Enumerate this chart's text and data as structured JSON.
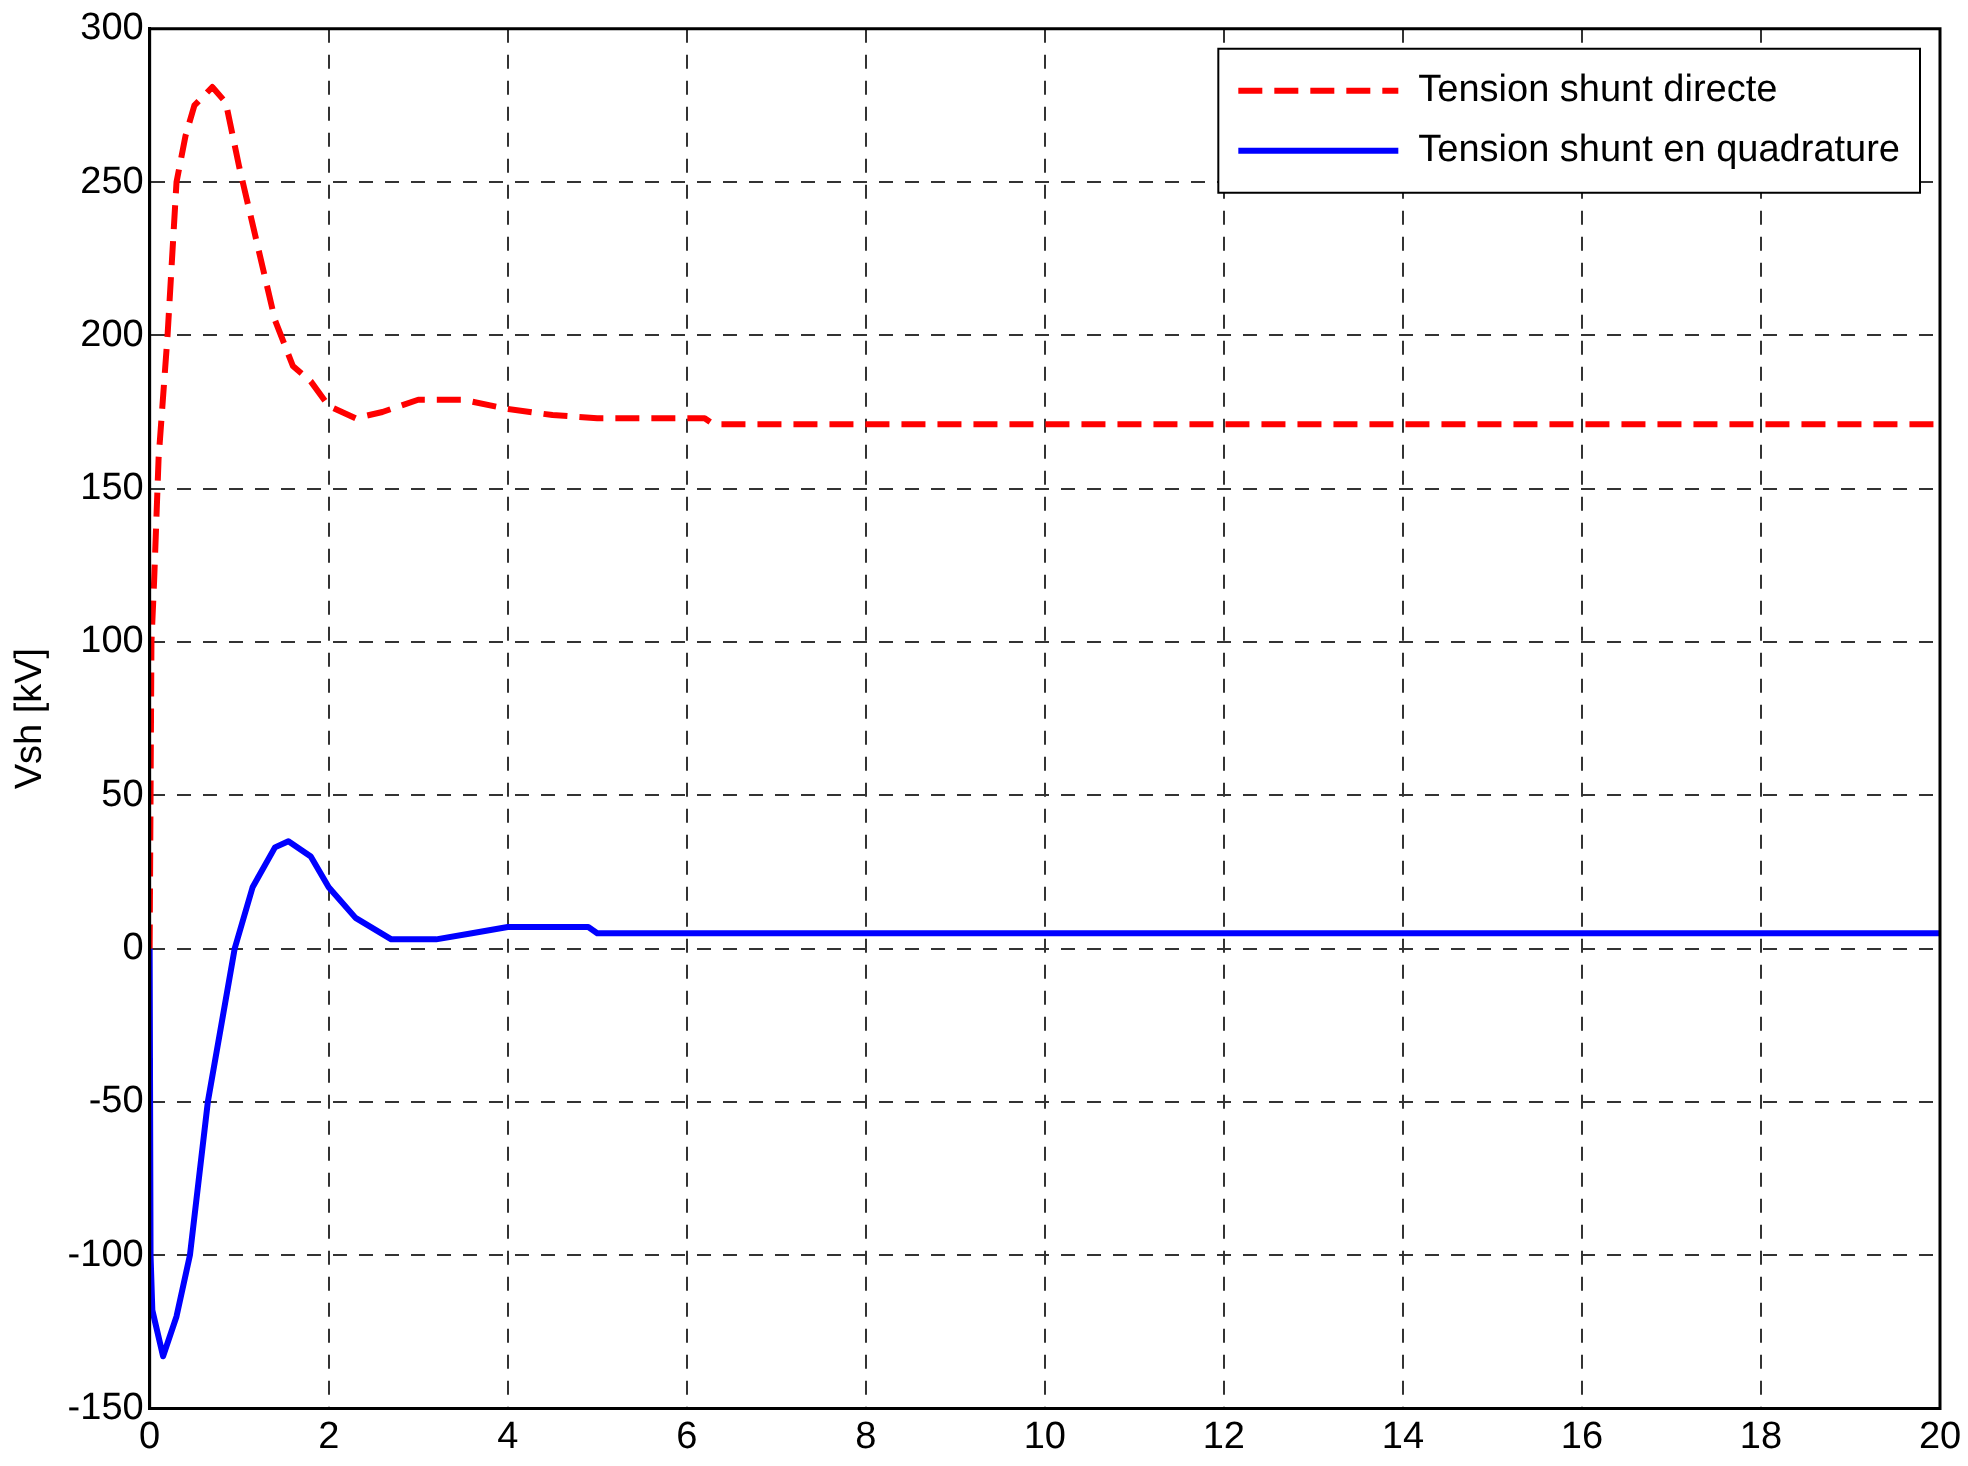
{
  "chart_data": {
    "type": "line",
    "ylabel": "Vsh [kV]",
    "xlim": [
      0,
      20
    ],
    "xticks": [
      0,
      2,
      4,
      6,
      8,
      10,
      12,
      14,
      16,
      18,
      20
    ],
    "ylim": [
      -150,
      300
    ],
    "yticks": [
      -150,
      -100,
      -50,
      0,
      50,
      100,
      150,
      200,
      250,
      300
    ],
    "grid": true,
    "legend": "top right",
    "series": [
      {
        "name": "Tension shunt directe",
        "color": "#ff0000",
        "line_style": "dashed",
        "x": [
          0,
          0.02,
          0.05,
          0.1,
          0.2,
          0.3,
          0.4,
          0.5,
          0.7,
          0.85,
          1.0,
          1.2,
          1.4,
          1.6,
          1.8,
          2.0,
          2.3,
          2.6,
          3.0,
          3.5,
          4.0,
          4.5,
          5.0,
          6.2,
          6.3,
          20
        ],
        "values": [
          0,
          100,
          120,
          160,
          200,
          250,
          265,
          275,
          281,
          276,
          255,
          230,
          205,
          190,
          185,
          177,
          173,
          175,
          179,
          179,
          176,
          174,
          173,
          173,
          171,
          171
        ]
      },
      {
        "name": "Tension shunt en quadrature",
        "color": "#0000ff",
        "line_style": "solid",
        "x": [
          0,
          0.01,
          0.03,
          0.15,
          0.3,
          0.45,
          0.65,
          0.95,
          1.15,
          1.4,
          1.55,
          1.8,
          2.0,
          2.3,
          2.7,
          3.2,
          3.6,
          4.0,
          4.9,
          5.0,
          20
        ],
        "values": [
          0,
          -100,
          -118,
          -133,
          -120,
          -100,
          -50,
          0,
          20,
          33,
          35,
          30,
          20,
          10,
          3,
          3,
          5,
          7,
          7,
          5,
          5
        ]
      }
    ]
  }
}
